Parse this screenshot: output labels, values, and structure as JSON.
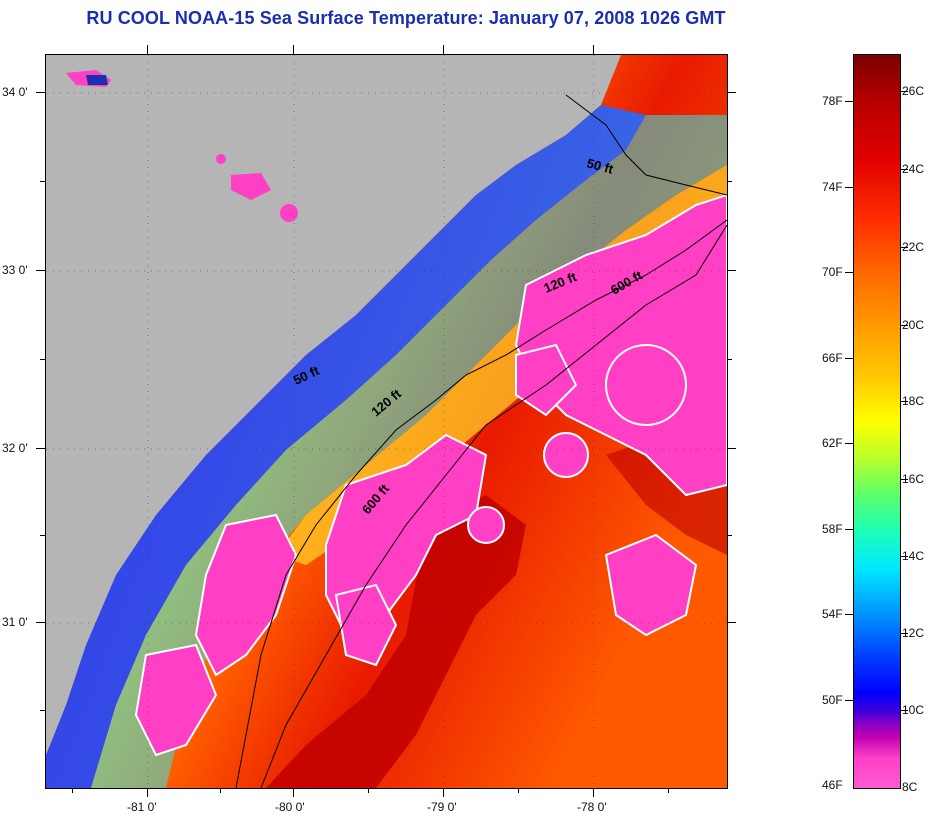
{
  "title": "RU COOL  NOAA-15  Sea Surface Temperature:  January 07, 2008 1026 GMT",
  "lat_labels": [
    "34 0'",
    "33 0'",
    "32 0'",
    "31 0'"
  ],
  "lon_labels": [
    "-81 0'",
    "-80 0'",
    "-79 0'",
    "-78 0'"
  ],
  "contour_labels": [
    "50 ft",
    "120 ft",
    "600 ft",
    "50 ft",
    "120 ft",
    "600 ft"
  ],
  "colorbar": {
    "fahrenheit": [
      "78F",
      "74F",
      "70F",
      "66F",
      "62F",
      "58F",
      "54F",
      "50F",
      "46F"
    ],
    "celsius": [
      "26C",
      "24C",
      "22C",
      "20C",
      "18C",
      "16C",
      "14C",
      "12C",
      "10C",
      "8C"
    ]
  },
  "colors": {
    "land": "#b5b5b5",
    "title": "#1a2fb0",
    "cloud": "#ff3fc4"
  }
}
